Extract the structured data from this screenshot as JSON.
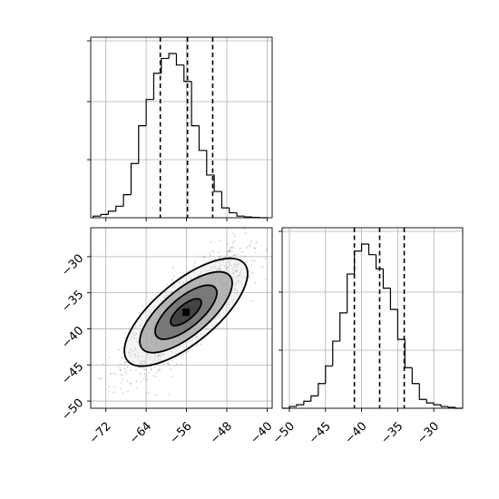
{
  "chart_data": {
    "type": "corner",
    "title": "",
    "parameters": [
      {
        "xlabel": "",
        "ylabel": ""
      },
      {
        "xlabel": "",
        "ylabel": ""
      }
    ],
    "grid": true,
    "panels": [
      {
        "id": "hist-1",
        "type": "histogram",
        "parameter": 1,
        "xlim": [
          -75,
          -39
        ],
        "ylim": [
          0,
          1
        ],
        "x_ticks": [
          -72,
          -64,
          -56,
          -48,
          -40
        ],
        "y_tick_count": 3,
        "bin_edges": [
          -74.5,
          -73,
          -71.5,
          -70,
          -68.5,
          -67,
          -65.5,
          -64,
          -62.5,
          -61,
          -59.5,
          -58,
          -56.5,
          -55,
          -53.5,
          -52,
          -50.5,
          -49,
          -47.5,
          -46,
          -44.5,
          -43,
          -41.5,
          -40
        ],
        "counts": [
          0.01,
          0.02,
          0.04,
          0.07,
          0.14,
          0.33,
          0.56,
          0.72,
          0.88,
          0.97,
          1.0,
          0.93,
          0.83,
          0.56,
          0.41,
          0.26,
          0.16,
          0.06,
          0.03,
          0.01,
          0.005,
          0.002,
          0.0
        ],
        "quantiles": [
          -61.2,
          -55.8,
          -50.8
        ]
      },
      {
        "id": "scatter-2d",
        "type": "density2d",
        "xlim": [
          -75,
          -39
        ],
        "ylim": [
          -51,
          -26
        ],
        "x_ticks": [
          -72,
          -64,
          -56,
          -48,
          -40
        ],
        "y_ticks": [
          -30,
          -35,
          -40,
          -45,
          -50
        ],
        "center": [
          -56.1,
          -37.7
        ],
        "spread": [
          5.8,
          4.1
        ],
        "correlation": 0.82,
        "contour_levels_sigma": [
          0.5,
          1.0,
          1.5,
          2.0
        ]
      },
      {
        "id": "hist-2",
        "type": "histogram",
        "parameter": 2,
        "xlim": [
          -51,
          -26
        ],
        "ylim": [
          0,
          1
        ],
        "x_ticks": [
          -50,
          -45,
          -40,
          -35,
          -30
        ],
        "y_tick_count": 3,
        "bin_edges": [
          -51,
          -50,
          -49,
          -48,
          -47,
          -46,
          -45,
          -44,
          -43,
          -42,
          -41,
          -40,
          -39,
          -38,
          -37,
          -36,
          -35,
          -34,
          -33,
          -32,
          -31,
          -30,
          -29,
          -28,
          -27,
          -26
        ],
        "counts": [
          0.0,
          0.01,
          0.02,
          0.04,
          0.07,
          0.14,
          0.24,
          0.38,
          0.54,
          0.76,
          0.89,
          0.93,
          0.87,
          0.79,
          0.68,
          0.56,
          0.39,
          0.23,
          0.14,
          0.05,
          0.03,
          0.02,
          0.01,
          0.005,
          0.0
        ],
        "quantiles": [
          -41.0,
          -37.5,
          -34.1
        ]
      }
    ]
  }
}
